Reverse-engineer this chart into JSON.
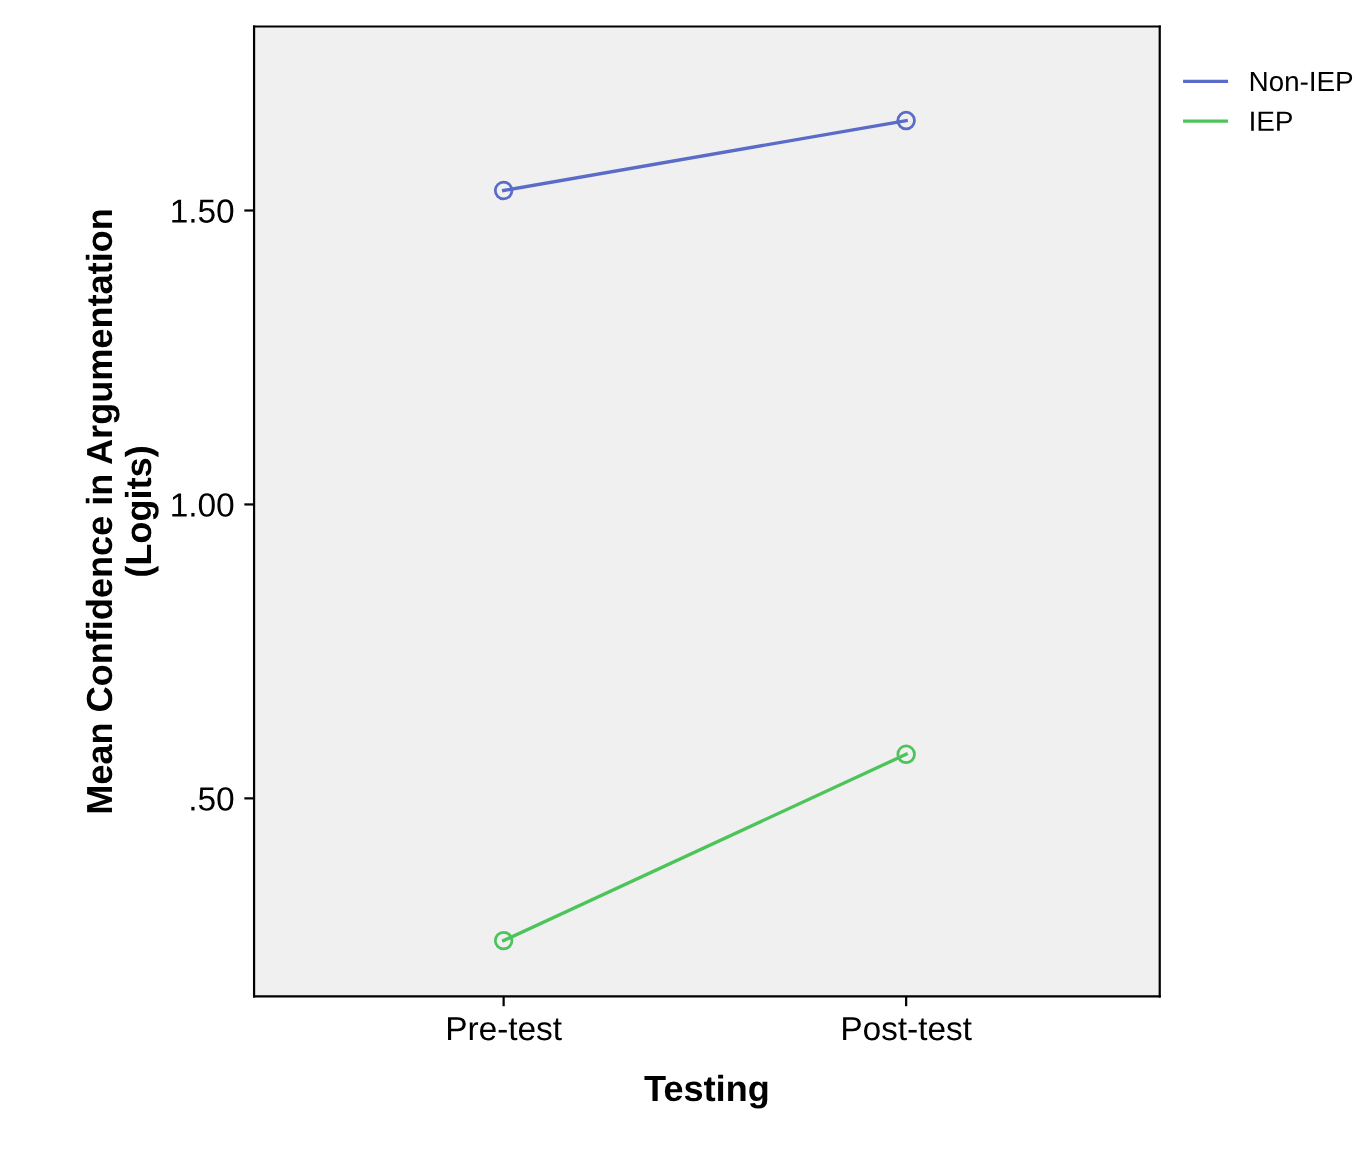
{
  "chart_data": {
    "type": "line",
    "xlabel": "Testing",
    "ylabel": "Mean Confidence in Argumentation\n(Logits)",
    "categories": [
      "Pre-test",
      "Post-test"
    ],
    "series": [
      {
        "name": "Non-IEP",
        "color": "#5a6bc8",
        "values": [
          1.534,
          1.653
        ]
      },
      {
        "name": "IEP",
        "color": "#4cc45a",
        "values": [
          0.258,
          0.575
        ]
      }
    ],
    "ylim": [
      0.163,
      1.813
    ],
    "yticks": [
      {
        "value": 0.5,
        "label": ".50"
      },
      {
        "value": 1.0,
        "label": "1.00"
      },
      {
        "value": 1.5,
        "label": "1.50"
      }
    ],
    "marker": "circle",
    "line_style": "solid",
    "grid": false,
    "legend": "top right"
  }
}
